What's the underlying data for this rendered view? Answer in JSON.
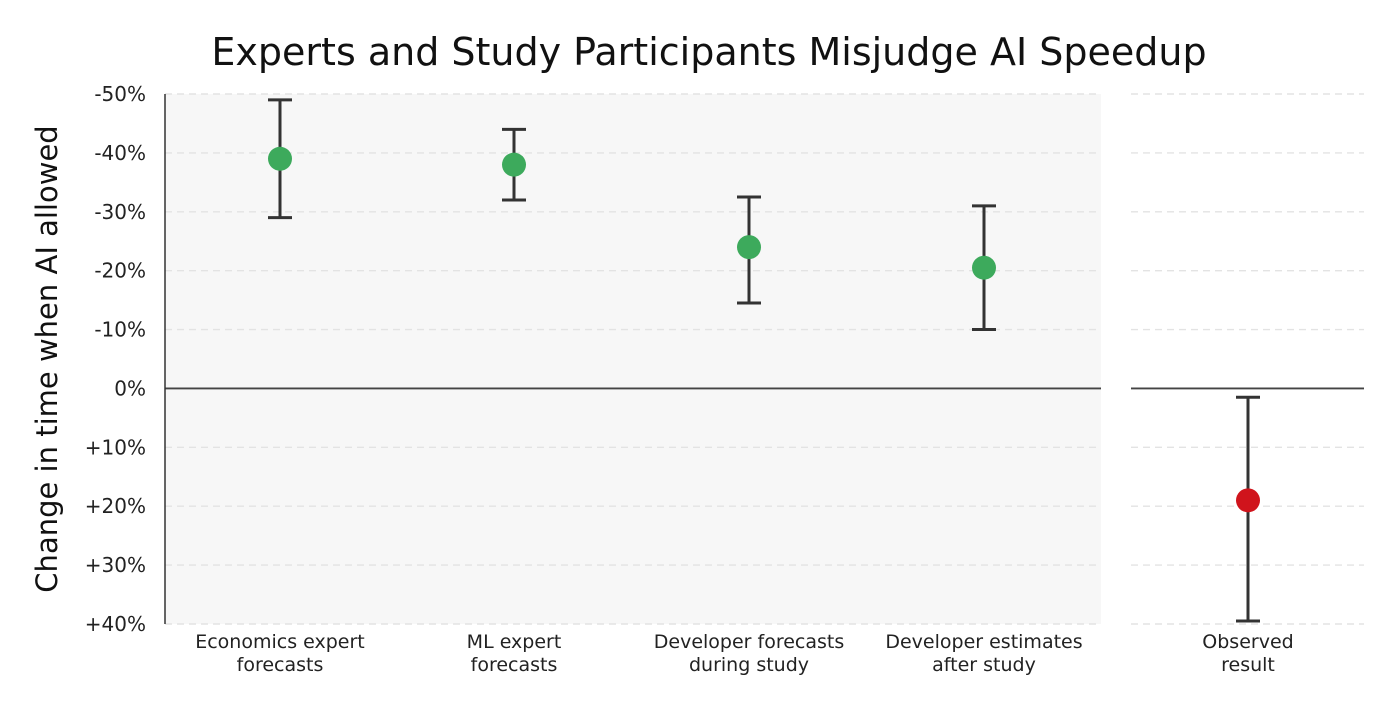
{
  "chart_data": {
    "type": "errorbar",
    "title": "Experts and Study Participants Misjudge AI Speedup",
    "ylabel": "Change in time when AI allowed",
    "ylim": [
      -50,
      40
    ],
    "y_axis_inverted": true,
    "y_ticks": [
      -50,
      -40,
      -30,
      -20,
      -10,
      0,
      10,
      20,
      30,
      40
    ],
    "y_tick_labels": [
      "-50%",
      "-40%",
      "-30%",
      "-20%",
      "-10%",
      "0%",
      "+10%",
      "+20%",
      "+30%",
      "+40%"
    ],
    "grid": true,
    "groups": [
      {
        "name": "forecasts",
        "shaded": true,
        "categories": [
          {
            "label_lines": [
              "Economics expert",
              "forecasts"
            ],
            "value": -39,
            "low": -49,
            "high": -29,
            "color": "#3daa5c"
          },
          {
            "label_lines": [
              "ML expert",
              "forecasts"
            ],
            "value": -38,
            "low": -44,
            "high": -32,
            "color": "#3daa5c"
          },
          {
            "label_lines": [
              "Developer forecasts",
              "during study"
            ],
            "value": -24,
            "low": -32.5,
            "high": -14.5,
            "color": "#3daa5c"
          },
          {
            "label_lines": [
              "Developer estimates",
              "after study"
            ],
            "value": -20.5,
            "low": -31,
            "high": -10,
            "color": "#3daa5c"
          }
        ]
      },
      {
        "name": "observed",
        "shaded": false,
        "categories": [
          {
            "label_lines": [
              "Observed",
              "result"
            ],
            "value": 19,
            "low": 1.5,
            "high": 39.5,
            "color": "#d0141c"
          }
        ]
      }
    ]
  }
}
